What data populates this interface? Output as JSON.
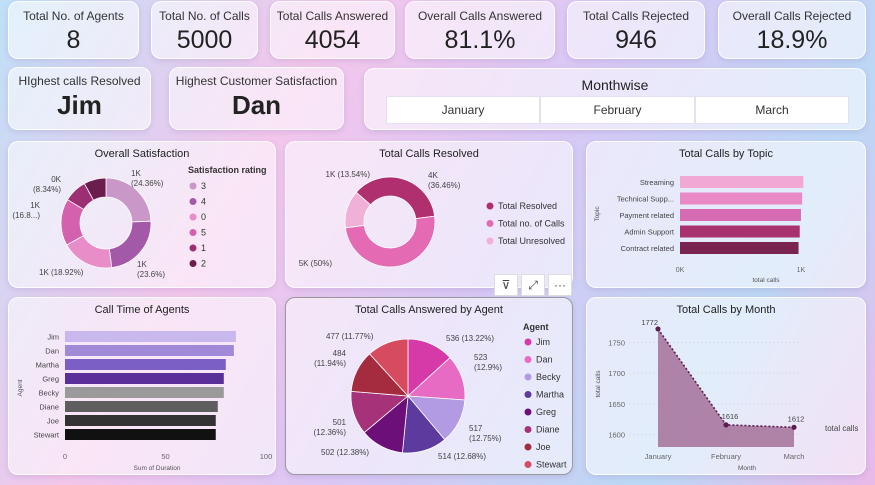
{
  "kpis": [
    {
      "label": "Total No. of Agents",
      "value": "8"
    },
    {
      "label": "Total No. of Calls",
      "value": "5000"
    },
    {
      "label": "Total Calls Answered",
      "value": "4054"
    },
    {
      "label": "Overall Calls Answered",
      "value": "81.1%"
    },
    {
      "label": "Total Calls Rejected",
      "value": "946"
    },
    {
      "label": "Overall Calls Rejected",
      "value": "18.9%"
    }
  ],
  "highlights": [
    {
      "label": "HIghest calls Resolved",
      "value": "Jim"
    },
    {
      "label": "Highest Customer Satisfaction",
      "value": "Dan"
    }
  ],
  "monthwise": {
    "title": "Monthwise",
    "options": [
      "January",
      "February",
      "March"
    ]
  },
  "chart_data": [
    {
      "type": "pie",
      "title": "Overall Satisfaction",
      "legend_title": "Satisfaction rating",
      "categories": [
        "3",
        "4",
        "0",
        "5",
        "1",
        "2"
      ],
      "values": [
        24.36,
        23.6,
        18.92,
        16.8,
        8.34,
        7.98
      ],
      "labels": [
        "1K (24.36%)",
        "1K (23.6%)",
        "1K (18.92%)",
        "1K (16.8...)",
        "0K (8.34%)",
        "0K"
      ],
      "colors": [
        "#c998c8",
        "#a359a8",
        "#e98dc8",
        "#d461ad",
        "#9c2f74",
        "#6b1d4e"
      ]
    },
    {
      "type": "pie",
      "title": "Total Calls Resolved",
      "categories": [
        "Total Resolved",
        "Total no. of Calls",
        "Total Unresolved"
      ],
      "values": [
        36.46,
        50,
        13.54
      ],
      "labels": [
        "4K (36.46%)",
        "5K (50%)",
        "1K (13.54%)"
      ],
      "colors": [
        "#b0306f",
        "#e36ab3",
        "#f0b0d8"
      ]
    },
    {
      "type": "bar",
      "title": "Total Calls by Topic",
      "categories": [
        "Streaming",
        "Technical Supp...",
        "Payment related",
        "Admin Support",
        "Contract related"
      ],
      "values": [
        1020,
        1010,
        1000,
        990,
        980
      ],
      "xlabel": "total calls",
      "ylabel": "Topic",
      "xticks": [
        "0K",
        "1K"
      ],
      "colors": [
        "#f2a8d4",
        "#e98ac6",
        "#d76bb3",
        "#a8326f",
        "#7a2452"
      ]
    },
    {
      "type": "bar",
      "title": "Call Time of Agents",
      "categories": [
        "Jim",
        "Dan",
        "Martha",
        "Greg",
        "Becky",
        "Diane",
        "Joe",
        "Stewart"
      ],
      "values": [
        85,
        84,
        80,
        79,
        79,
        76,
        75,
        75
      ],
      "xlabel": "Sum of Duration",
      "ylabel": "Agent",
      "xticks": [
        "0",
        "50",
        "100"
      ],
      "colors": [
        "#c8b8ee",
        "#a08ad8",
        "#7c5fc5",
        "#5a2f9a",
        "#9a9a9a",
        "#5e5e5e",
        "#333333",
        "#111111"
      ]
    },
    {
      "type": "pie",
      "title": "Total Calls Answered by Agent",
      "legend_title": "Agent",
      "categories": [
        "Jim",
        "Dan",
        "Becky",
        "Martha",
        "Greg",
        "Diane",
        "Joe",
        "Stewart"
      ],
      "values": [
        536,
        523,
        517,
        514,
        502,
        501,
        484,
        477
      ],
      "labels": [
        "536 (13.22%)",
        "523 (12.9%)",
        "517 (12.75%)",
        "514 (12.68%)",
        "502 (12.38%)",
        "501 (12.36%)",
        "484 (11.94%)",
        "477 (11.77%)"
      ],
      "colors": [
        "#d63aa8",
        "#e76bc2",
        "#b39be3",
        "#5d3a9e",
        "#6c0f78",
        "#a6327a",
        "#a42c3e",
        "#d74b5f"
      ]
    },
    {
      "type": "area",
      "title": "Total Calls by Month",
      "categories": [
        "January",
        "February",
        "March"
      ],
      "values": [
        1772,
        1616,
        1612
      ],
      "labels": [
        "1772",
        "1616",
        "1612"
      ],
      "xlabel": "Month",
      "ylabel": "total calls",
      "legend": "total calls",
      "yticks": [
        1600,
        1650,
        1700,
        1750
      ],
      "ylim": [
        1580,
        1780
      ]
    }
  ],
  "toolbar": {
    "filter": "⊽",
    "expand": "⤢",
    "more": "···"
  }
}
